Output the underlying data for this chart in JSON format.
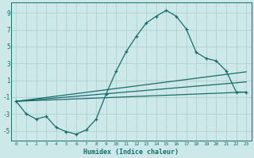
{
  "xlabel": "Humidex (Indice chaleur)",
  "background_color": "#cce8e8",
  "grid_color": "#b0d0d0",
  "line_color": "#1a6b6b",
  "xlim": [
    -0.5,
    23.5
  ],
  "ylim": [
    -6.2,
    10.2
  ],
  "yticks": [
    -5,
    -3,
    -1,
    1,
    3,
    5,
    7,
    9
  ],
  "xticks": [
    0,
    1,
    2,
    3,
    4,
    5,
    6,
    7,
    8,
    9,
    10,
    11,
    12,
    13,
    14,
    15,
    16,
    17,
    18,
    19,
    20,
    21,
    22,
    23
  ],
  "curve_x": [
    0,
    1,
    2,
    3,
    4,
    5,
    6,
    7,
    8,
    9,
    10,
    11,
    12,
    13,
    14,
    15,
    16,
    17,
    18,
    19,
    20,
    21,
    22,
    23
  ],
  "curve_y": [
    -1.5,
    -3.0,
    -3.6,
    -3.3,
    -4.6,
    -5.1,
    -5.4,
    -4.9,
    -3.6,
    -0.6,
    2.1,
    4.4,
    6.2,
    7.8,
    8.6,
    9.3,
    8.6,
    7.1,
    4.3,
    3.6,
    3.3,
    2.1,
    -0.4,
    -0.4
  ],
  "line2_x": [
    0,
    23
  ],
  "line2_y": [
    -1.5,
    -0.4
  ],
  "line3_x": [
    0,
    23
  ],
  "line3_y": [
    -1.5,
    0.8
  ],
  "line4_x": [
    0,
    23
  ],
  "line4_y": [
    -1.5,
    2.0
  ]
}
